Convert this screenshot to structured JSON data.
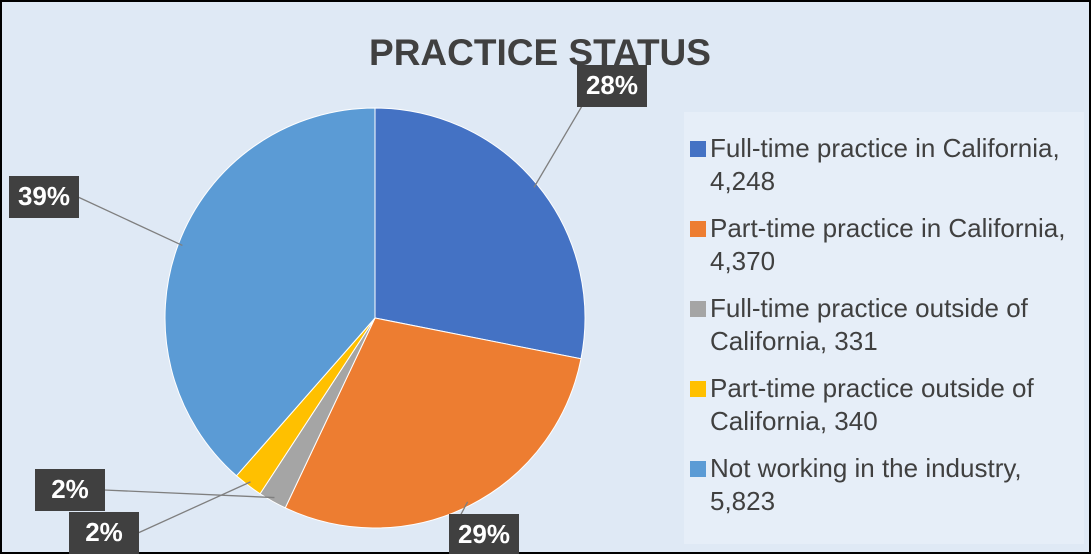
{
  "chart_data": {
    "type": "pie",
    "title": "PRACTICE STATUS",
    "categories": [
      "Full-time practice in California, 4,248",
      "Part-time practice in California, 4,370",
      "Full-time practice outside of California, 331",
      "Part-time practice outside of California, 340",
      "Not working in the industry, 5,823"
    ],
    "values": [
      4248,
      4370,
      331,
      340,
      5823
    ],
    "percent_labels": [
      "28%",
      "29%",
      "2%",
      "2%",
      "39%"
    ],
    "colors": [
      "#4472c4",
      "#ed7d31",
      "#a5a5a5",
      "#ffc000",
      "#5b9bd5"
    ],
    "legend": "right"
  }
}
